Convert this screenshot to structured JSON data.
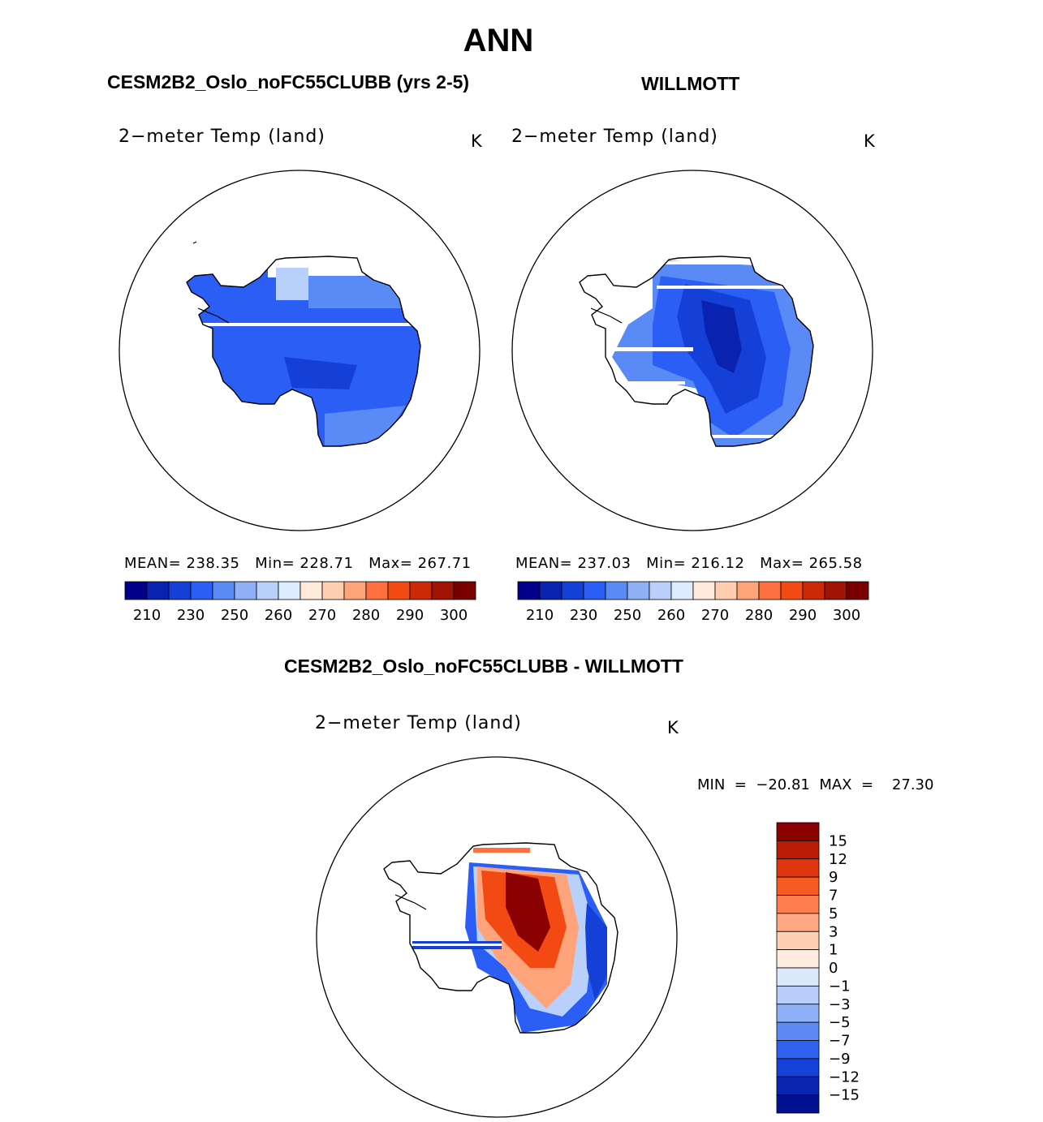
{
  "figure": {
    "season": "ANN",
    "units": "K"
  },
  "panels": {
    "model": {
      "case_title": "CESM2B2_Oslo_noFC55CLUBB (yrs 2-5)",
      "var_title": "2−meter Temp (land)",
      "units": "K",
      "stats": {
        "mean_label": "MEAN=",
        "mean": "238.35",
        "min_label": "Min=",
        "min": "228.71",
        "max_label": "Max=",
        "max": "267.71"
      }
    },
    "obs": {
      "case_title": "WILLMOTT",
      "var_title": "2−meter Temp (land)",
      "units": "K",
      "stats": {
        "mean_label": "MEAN=",
        "mean": "237.03",
        "min_label": "Min=",
        "min": "216.12",
        "max_label": "Max=",
        "max": "265.58"
      }
    },
    "diff": {
      "case_title": "CESM2B2_Oslo_noFC55CLUBB - WILLMOTT",
      "var_title": "2−meter Temp (land)",
      "units": "K",
      "minmax_text": "MIN  =  −20.81  MAX  =    27.30"
    }
  },
  "chart_data": [
    {
      "type": "heatmap",
      "projection": "south-polar-stereographic",
      "title": "CESM2B2_Oslo_noFC55CLUBB (yrs 2-5)",
      "variable": "2-meter Temp (land)",
      "units": "K",
      "mean": 238.35,
      "min": 228.71,
      "max": 267.71,
      "colorbar": {
        "levels": [
          210,
          220,
          230,
          240,
          250,
          255,
          260,
          265,
          270,
          275,
          280,
          285,
          290,
          295,
          300
        ],
        "tick_labels": [
          "210",
          "230",
          "250",
          "260",
          "270",
          "280",
          "290",
          "300"
        ],
        "colors": [
          "#00008b",
          "#0a22b0",
          "#1540d8",
          "#2a5ef5",
          "#5a8af5",
          "#8fb0f7",
          "#b9d0fb",
          "#dcebff",
          "#ffeadb",
          "#ffcdb0",
          "#ffa37a",
          "#ff7040",
          "#f24a12",
          "#cc2a06",
          "#a01403",
          "#7a0000"
        ]
      }
    },
    {
      "type": "heatmap",
      "projection": "south-polar-stereographic",
      "title": "WILLMOTT",
      "variable": "2-meter Temp (land)",
      "units": "K",
      "mean": 237.03,
      "min": 216.12,
      "max": 265.58,
      "colorbar": {
        "levels": [
          210,
          220,
          230,
          240,
          250,
          255,
          260,
          265,
          270,
          275,
          280,
          285,
          290,
          295,
          300
        ],
        "tick_labels": [
          "210",
          "230",
          "250",
          "260",
          "270",
          "280",
          "290",
          "300"
        ],
        "colors": [
          "#00008b",
          "#0a22b0",
          "#1540d8",
          "#2a5ef5",
          "#5a8af5",
          "#8fb0f7",
          "#b9d0fb",
          "#dcebff",
          "#ffeadb",
          "#ffcdb0",
          "#ffa37a",
          "#ff7040",
          "#f24a12",
          "#cc2a06",
          "#a01403",
          "#7a0000"
        ]
      }
    },
    {
      "type": "heatmap",
      "projection": "south-polar-stereographic",
      "title": "CESM2B2_Oslo_noFC55CLUBB - WILLMOTT",
      "variable": "2-meter Temp (land)",
      "units": "K",
      "min": -20.81,
      "max": 27.3,
      "colorbar": {
        "orientation": "vertical",
        "tick_labels": [
          "15",
          "12",
          "9",
          "7",
          "5",
          "3",
          "1",
          "0",
          "−1",
          "−3",
          "−5",
          "−7",
          "−9",
          "−12",
          "−15"
        ],
        "colors": [
          "#8b0000",
          "#b81c05",
          "#e0360d",
          "#f75a23",
          "#ff7e4e",
          "#ffa882",
          "#ffcfb3",
          "#ffece0",
          "#dce9fb",
          "#b9cffb",
          "#8fb0f7",
          "#5c8af4",
          "#2e62ee",
          "#1542d6",
          "#0a26b0",
          "#00108e"
        ]
      }
    }
  ]
}
